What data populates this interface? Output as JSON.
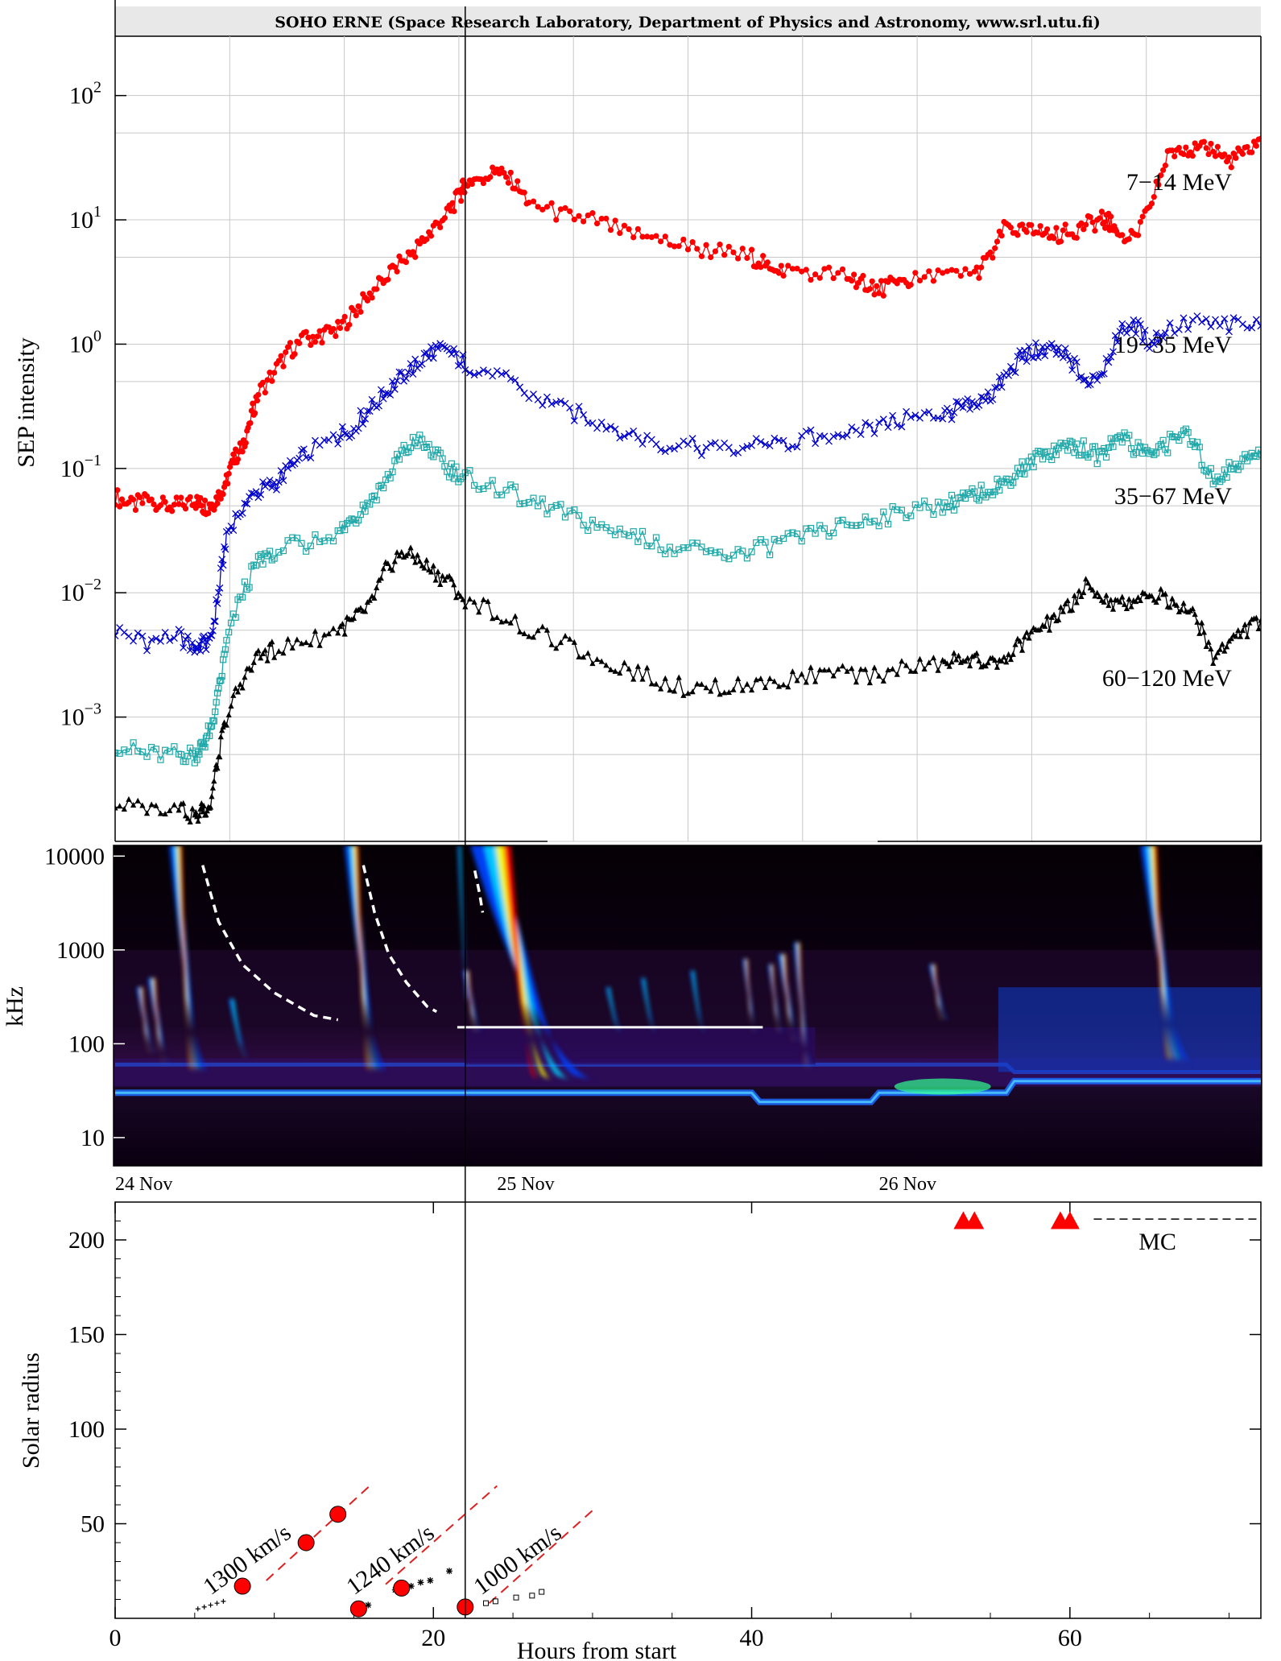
{
  "banner": "SOHO ERNE (Space Research Laboratory, Department of Physics and Astronomy, www.srl.utu.fi)",
  "chart_data": [
    {
      "type": "line",
      "panel": "SEP intensity",
      "ylabel": "SEP intensity",
      "yscale": "log",
      "ylim": [
        0.0001,
        300
      ],
      "xlim": [
        0,
        72
      ],
      "y_ticks": [
        {
          "value": 0.001,
          "base": "10",
          "exp": "−3"
        },
        {
          "value": 0.01,
          "base": "10",
          "exp": "−2"
        },
        {
          "value": 0.1,
          "base": "10",
          "exp": "−1"
        },
        {
          "value": 1,
          "base": "10",
          "exp": "0"
        },
        {
          "value": 10,
          "base": "10",
          "exp": "1"
        },
        {
          "value": 100,
          "base": "10",
          "exp": "2"
        }
      ],
      "grid": true,
      "series": [
        {
          "name": "7−14 MeV",
          "color": "#ff0000",
          "marker": "filled-circle",
          "x": [
            0,
            1,
            2,
            3,
            4,
            5,
            5.5,
            6,
            6.5,
            7,
            7.5,
            8,
            8.5,
            9,
            10,
            11,
            12,
            13,
            14,
            15,
            16,
            17,
            18,
            19,
            20,
            21,
            21.7,
            22,
            23,
            24,
            25,
            26,
            28,
            30,
            32,
            34,
            36,
            38,
            40,
            41,
            42,
            44,
            46,
            47,
            48,
            49,
            50,
            52,
            54,
            55,
            56,
            57,
            58,
            59,
            60,
            61,
            62,
            62.5,
            63,
            64,
            65,
            66,
            67,
            68,
            69,
            70,
            71,
            72
          ],
          "y": [
            0.06,
            0.05,
            0.055,
            0.05,
            0.05,
            0.055,
            0.05,
            0.05,
            0.06,
            0.08,
            0.12,
            0.15,
            0.25,
            0.4,
            0.6,
            0.9,
            1.1,
            1.2,
            1.3,
            1.8,
            2.5,
            3.5,
            4.5,
            6,
            8.5,
            12,
            16,
            20,
            22,
            24,
            20,
            14,
            11,
            10,
            8,
            7,
            6,
            5.5,
            5,
            4.5,
            4,
            3.8,
            3.5,
            3.2,
            2.8,
            3,
            3.2,
            3.5,
            3.6,
            5,
            9,
            8,
            8,
            7.5,
            8,
            9,
            10,
            9.5,
            8,
            7,
            12,
            30,
            40,
            35,
            38,
            30,
            35,
            45
          ]
        },
        {
          "name": "19−35 MeV",
          "color": "#0000cc",
          "marker": "x",
          "x": [
            0,
            2,
            4,
            5,
            5.5,
            6,
            6.5,
            7,
            8,
            9,
            10,
            11,
            12,
            14,
            15,
            16,
            17,
            18,
            19,
            20,
            21,
            22,
            24,
            26,
            28,
            30,
            32,
            34,
            36,
            38,
            40,
            42,
            44,
            46,
            48,
            50,
            52,
            53,
            54,
            55,
            56,
            57,
            58,
            59,
            60,
            61,
            62,
            63,
            64,
            65,
            66,
            68,
            70,
            72
          ],
          "y": [
            0.005,
            0.004,
            0.0045,
            0.0035,
            0.004,
            0.004,
            0.01,
            0.03,
            0.05,
            0.065,
            0.075,
            0.1,
            0.13,
            0.18,
            0.22,
            0.3,
            0.4,
            0.55,
            0.7,
            0.9,
            0.85,
            0.7,
            0.55,
            0.4,
            0.3,
            0.25,
            0.2,
            0.16,
            0.15,
            0.14,
            0.15,
            0.16,
            0.18,
            0.2,
            0.22,
            0.25,
            0.27,
            0.3,
            0.32,
            0.38,
            0.55,
            0.8,
            0.9,
            0.9,
            0.75,
            0.5,
            0.6,
            1.2,
            1.5,
            1,
            1.3,
            1.5,
            1.4,
            1.4
          ]
        },
        {
          "name": "35−67 MeV",
          "color": "#20a8a8",
          "marker": "open-square",
          "x": [
            0,
            2,
            4,
            5,
            5.5,
            6,
            6.5,
            7,
            8,
            9,
            10,
            12,
            14,
            15,
            16,
            17,
            18,
            19,
            20,
            21,
            22,
            24,
            26,
            28,
            30,
            32,
            34,
            36,
            38,
            40,
            42,
            44,
            46,
            48,
            50,
            52,
            53,
            54,
            55,
            56,
            57,
            58,
            59,
            60,
            61,
            62,
            63,
            64,
            65,
            66,
            67,
            68,
            69,
            70,
            71,
            72
          ],
          "y": [
            0.0006,
            0.0005,
            0.0005,
            0.0005,
            0.0006,
            0.0008,
            0.0015,
            0.004,
            0.01,
            0.018,
            0.022,
            0.025,
            0.03,
            0.04,
            0.055,
            0.08,
            0.13,
            0.17,
            0.13,
            0.1,
            0.085,
            0.07,
            0.055,
            0.045,
            0.035,
            0.03,
            0.025,
            0.022,
            0.02,
            0.022,
            0.025,
            0.03,
            0.035,
            0.04,
            0.045,
            0.05,
            0.055,
            0.06,
            0.07,
            0.08,
            0.1,
            0.12,
            0.14,
            0.16,
            0.14,
            0.12,
            0.2,
            0.15,
            0.13,
            0.15,
            0.2,
            0.14,
            0.08,
            0.1,
            0.12,
            0.13
          ]
        },
        {
          "name": "60−120 MeV",
          "color": "#000000",
          "marker": "filled-triangle",
          "x": [
            0,
            2,
            4,
            5,
            5.5,
            6,
            6.5,
            7,
            8,
            9,
            10,
            12,
            14,
            15,
            16,
            17,
            18,
            19,
            20,
            21,
            22,
            24,
            26,
            28,
            30,
            32,
            34,
            36,
            38,
            40,
            42,
            44,
            46,
            48,
            50,
            52,
            53,
            54,
            55,
            56,
            57,
            58,
            59,
            60,
            61,
            62,
            63,
            64,
            65,
            66,
            67,
            68,
            69,
            70,
            71,
            72
          ],
          "y": [
            0.0002,
            0.00018,
            0.0002,
            0.00015,
            0.00018,
            0.0002,
            0.0005,
            0.001,
            0.002,
            0.003,
            0.0035,
            0.004,
            0.005,
            0.006,
            0.008,
            0.015,
            0.022,
            0.018,
            0.015,
            0.012,
            0.009,
            0.007,
            0.005,
            0.004,
            0.003,
            0.0025,
            0.002,
            0.0017,
            0.0017,
            0.0018,
            0.002,
            0.0022,
            0.0022,
            0.0022,
            0.0025,
            0.0027,
            0.003,
            0.003,
            0.0026,
            0.003,
            0.004,
            0.005,
            0.006,
            0.008,
            0.011,
            0.009,
            0.008,
            0.009,
            0.01,
            0.009,
            0.008,
            0.006,
            0.003,
            0.004,
            0.005,
            0.006
          ]
        }
      ]
    },
    {
      "type": "heatmap",
      "panel": "radio dynamic spectrum",
      "ylabel": "kHz",
      "yscale": "log",
      "ylim": [
        5,
        13000
      ],
      "y_ticks": [
        {
          "value": 10,
          "label": "10"
        },
        {
          "value": 100,
          "label": "100"
        },
        {
          "value": 1000,
          "label": "1000"
        },
        {
          "value": 10000,
          "label": "10000"
        }
      ],
      "date_labels": [
        {
          "x": 0,
          "label": "24 Nov"
        },
        {
          "x": 24,
          "label": "25 Nov"
        },
        {
          "x": 48,
          "label": "26 Nov"
        }
      ],
      "colors": [
        "#000000",
        "#3a0a4a",
        "#0040ff",
        "#00d0ff",
        "#ffff00",
        "#ff0000"
      ],
      "bursts": [
        {
          "x": 1.8,
          "f_top": 400,
          "f_bot": 90,
          "w": 0.5,
          "i": 0.9
        },
        {
          "x": 2.6,
          "f_top": 500,
          "f_bot": 70,
          "w": 0.6,
          "i": 0.95
        },
        {
          "x": 4.3,
          "f_top": 13000,
          "f_bot": 55,
          "w": 1.0,
          "i": 1.0
        },
        {
          "x": 7.6,
          "f_top": 300,
          "f_bot": 80,
          "w": 0.5,
          "i": 0.6
        },
        {
          "x": 15.4,
          "f_top": 13000,
          "f_bot": 55,
          "w": 1.1,
          "i": 1.0
        },
        {
          "x": 21.8,
          "f_top": 13000,
          "f_bot": 300,
          "w": 0.3,
          "i": 0.6
        },
        {
          "x": 22.3,
          "f_top": 600,
          "f_bot": 150,
          "w": 0.5,
          "i": 0.8
        },
        {
          "x": 25.2,
          "f_top": 13000,
          "f_bot": 45,
          "w": 3.2,
          "i": 1.0
        },
        {
          "x": 31.2,
          "f_top": 400,
          "f_bot": 150,
          "w": 0.4,
          "i": 0.7
        },
        {
          "x": 33.4,
          "f_top": 500,
          "f_bot": 150,
          "w": 0.4,
          "i": 0.7
        },
        {
          "x": 36.5,
          "f_top": 600,
          "f_bot": 150,
          "w": 0.4,
          "i": 0.7
        },
        {
          "x": 39.8,
          "f_top": 800,
          "f_bot": 150,
          "w": 0.4,
          "i": 0.8
        },
        {
          "x": 41.4,
          "f_top": 700,
          "f_bot": 150,
          "w": 0.4,
          "i": 0.8
        },
        {
          "x": 42.2,
          "f_top": 900,
          "f_bot": 120,
          "w": 0.6,
          "i": 0.95
        },
        {
          "x": 43.1,
          "f_top": 1200,
          "f_bot": 60,
          "w": 0.5,
          "i": 0.9
        },
        {
          "x": 51.6,
          "f_top": 700,
          "f_bot": 200,
          "w": 0.5,
          "i": 0.9
        },
        {
          "x": 65.6,
          "f_top": 13000,
          "f_bot": 70,
          "w": 1.3,
          "i": 1.0
        }
      ],
      "dashed_curves": [
        {
          "x": [
            5.5,
            6.5,
            8,
            10,
            12.5,
            14
          ],
          "y": [
            8000,
            2000,
            700,
            350,
            200,
            180
          ]
        },
        {
          "x": [
            15.6,
            16.3,
            17.2,
            18.3,
            19.6,
            20.2
          ],
          "y": [
            8000,
            2500,
            900,
            450,
            250,
            220
          ]
        },
        {
          "x": [
            22.6,
            22.9,
            23.1
          ],
          "y": [
            7000,
            4000,
            2500
          ]
        }
      ],
      "white_line": {
        "x": [
          21.5,
          40.7
        ],
        "y": 150
      }
    },
    {
      "type": "scatter",
      "panel": "height-time",
      "ylabel": "Solar radius",
      "xlabel": "Hours from start",
      "xlim": [
        0,
        72
      ],
      "ylim": [
        0,
        220
      ],
      "x_ticks": [
        0,
        20,
        40,
        60
      ],
      "y_ticks": [
        50,
        100,
        150,
        200
      ],
      "red_circles": {
        "x": [
          8,
          12,
          14,
          15.3,
          18,
          22
        ],
        "y": [
          17,
          40,
          55,
          5,
          16,
          6
        ]
      },
      "small_plus": {
        "x": [
          5.2,
          5.6,
          6.0,
          6.4,
          6.8
        ],
        "y": [
          5,
          6,
          7,
          8,
          9
        ]
      },
      "asterisks": {
        "x": [
          15.9,
          17.6,
          18.6,
          19.2,
          19.8,
          21
        ],
        "y": [
          7,
          15,
          17,
          19,
          20,
          25
        ]
      },
      "small_squares": {
        "x": [
          23.3,
          23.9,
          25.2,
          26.2,
          26.8
        ],
        "y": [
          8,
          9,
          11,
          12,
          14
        ]
      },
      "dashed_fits": [
        {
          "x": [
            9.5,
            16
          ],
          "y": [
            20,
            70
          ],
          "label": "1300 km/s",
          "lx": 6,
          "ly": 12,
          "angle": -36
        },
        {
          "x": [
            17,
            24
          ],
          "y": [
            18,
            70
          ],
          "label": "1240 km/s",
          "lx": 15,
          "ly": 12,
          "angle": -36
        },
        {
          "x": [
            23.5,
            30
          ],
          "y": [
            8,
            57
          ],
          "label": "1000 km/s",
          "lx": 23,
          "ly": 12,
          "angle": -36
        }
      ],
      "triangles": {
        "x": [
          53.3,
          54.0,
          59.4,
          60.0
        ],
        "y": [
          210,
          210,
          210,
          210
        ]
      },
      "mc_line": {
        "x": [
          61.5,
          72
        ],
        "y": 211,
        "label": "MC"
      }
    }
  ],
  "vertical_marker_hour": 22
}
